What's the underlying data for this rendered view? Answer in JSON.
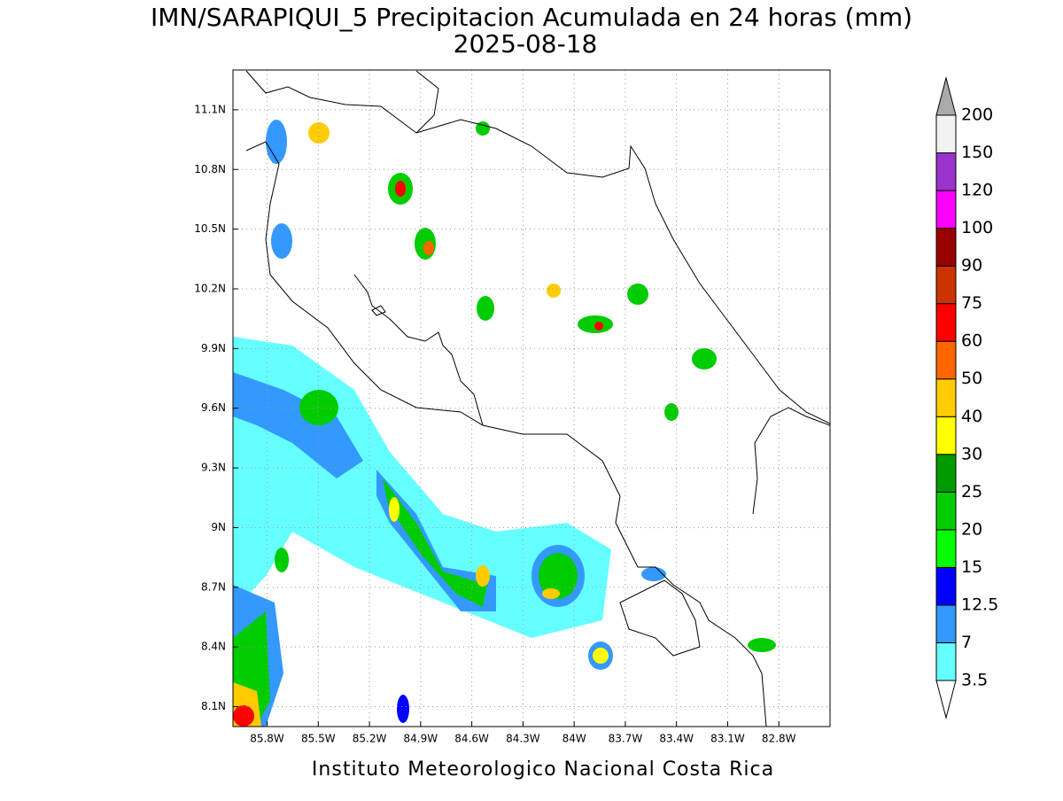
{
  "map": {
    "title": "IMN/SARAPIQUI_5 Precipitacion Acumulada en 24 horas (mm)",
    "subtitle": "2025-08-18",
    "footer": "Instituto Meteorologico Nacional Costa Rica",
    "lon_range": [
      -86.0,
      -82.5
    ],
    "lat_range": [
      8.0,
      11.3
    ],
    "lat_ticks": [
      {
        "value": 11.1,
        "label": "11.1N"
      },
      {
        "value": 10.8,
        "label": "10.8N"
      },
      {
        "value": 10.5,
        "label": "10.5N"
      },
      {
        "value": 10.2,
        "label": "10.2N"
      },
      {
        "value": 9.9,
        "label": "9.9N"
      },
      {
        "value": 9.6,
        "label": "9.6N"
      },
      {
        "value": 9.3,
        "label": "9.3N"
      },
      {
        "value": 9,
        "label": "9N"
      },
      {
        "value": 8.7,
        "label": "8.7N"
      },
      {
        "value": 8.4,
        "label": "8.4N"
      },
      {
        "value": 8.1,
        "label": "8.1N"
      }
    ],
    "lon_ticks": [
      {
        "value": -85.8,
        "label": "85.8W"
      },
      {
        "value": -85.5,
        "label": "85.5W"
      },
      {
        "value": -85.2,
        "label": "85.2W"
      },
      {
        "value": -84.9,
        "label": "84.9W"
      },
      {
        "value": -84.6,
        "label": "84.6W"
      },
      {
        "value": -84.3,
        "label": "84.3W"
      },
      {
        "value": -84,
        "label": "84W"
      },
      {
        "value": -83.7,
        "label": "83.7W"
      },
      {
        "value": -83.4,
        "label": "83.4W"
      },
      {
        "value": -83.1,
        "label": "83.1W"
      },
      {
        "value": -82.8,
        "label": "82.8W"
      }
    ],
    "colorbar": {
      "levels": [
        3.5,
        7,
        12.5,
        15,
        20,
        25,
        30,
        40,
        50,
        60,
        75,
        90,
        100,
        120,
        150,
        200
      ],
      "colors": [
        "#66ffff",
        "#3399ff",
        "#0000ff",
        "#00ff00",
        "#00cc00",
        "#009900",
        "#ffff00",
        "#ffcc00",
        "#ff6600",
        "#ff0000",
        "#cc3300",
        "#990000",
        "#ff00ff",
        "#9933cc",
        "#f2f2f2"
      ],
      "under_color": "#ffffff",
      "over_color": "#aaaaaa"
    }
  }
}
